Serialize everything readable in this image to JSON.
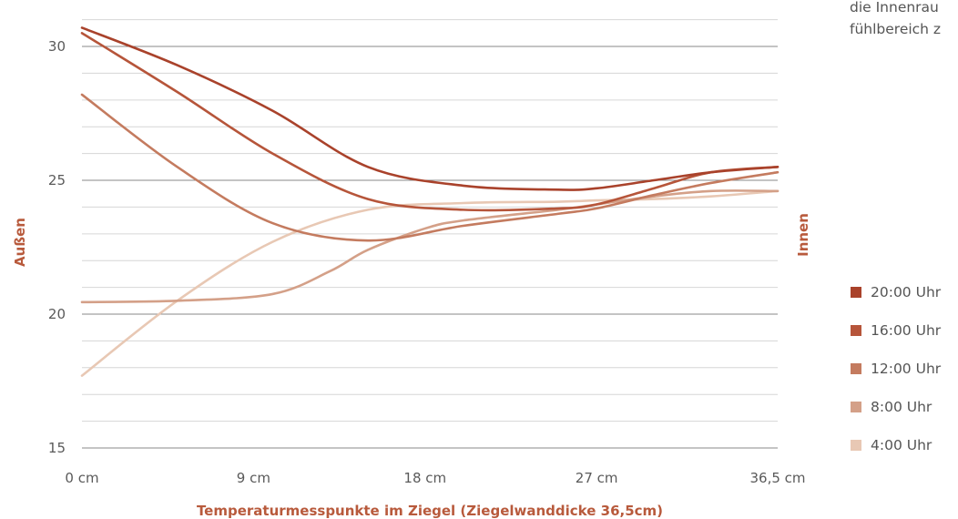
{
  "chart_data": {
    "type": "line",
    "xlabel": "Temperaturmesspunkte im Ziegel (Ziegelwanddicke 36,5cm)",
    "ylabel_left": "Außen",
    "ylabel_right": "Innen",
    "x_tick_labels": [
      "0 cm",
      "9 cm",
      "18 cm",
      "27 cm",
      "36,5 cm"
    ],
    "x_tick_values": [
      0,
      9,
      18,
      27,
      36.5
    ],
    "y_ticks": [
      15,
      20,
      25,
      30
    ],
    "ylim": [
      15,
      31.6
    ],
    "xlim": [
      0,
      36.5
    ],
    "grid": true,
    "legend_position": "right",
    "series": [
      {
        "name": "20:00 Uhr",
        "color": "#a9422b",
        "x": [
          0,
          5,
          10,
          15,
          20,
          25,
          27,
          30,
          33,
          36.5
        ],
        "y": [
          30.7,
          29.3,
          27.6,
          25.5,
          24.8,
          24.65,
          24.7,
          25.0,
          25.3,
          25.5
        ]
      },
      {
        "name": "16:00 Uhr",
        "color": "#b6553a",
        "x": [
          0,
          5,
          10,
          15,
          20,
          25,
          27,
          30,
          33,
          36.5
        ],
        "y": [
          30.5,
          28.3,
          26.0,
          24.3,
          23.9,
          23.95,
          24.1,
          24.7,
          25.3,
          25.5
        ]
      },
      {
        "name": "12:00 Uhr",
        "color": "#c47b5f",
        "x": [
          0,
          5,
          10,
          15,
          20,
          25,
          27,
          30,
          33,
          36.5
        ],
        "y": [
          28.2,
          25.5,
          23.4,
          22.75,
          23.3,
          23.75,
          23.95,
          24.45,
          24.9,
          25.3
        ]
      },
      {
        "name": "8:00 Uhr",
        "color": "#d4a088",
        "x": [
          0,
          5,
          10,
          13,
          15,
          18,
          20,
          25,
          27,
          30,
          33,
          36.5
        ],
        "y": [
          20.45,
          20.5,
          20.75,
          21.6,
          22.4,
          23.2,
          23.5,
          23.9,
          24.1,
          24.4,
          24.6,
          24.6
        ]
      },
      {
        "name": "4:00 Uhr",
        "color": "#e8c8b4",
        "x": [
          0,
          5,
          10,
          15,
          20,
          25,
          27,
          30,
          33,
          36.5
        ],
        "y": [
          17.7,
          20.5,
          22.7,
          23.9,
          24.15,
          24.2,
          24.25,
          24.3,
          24.4,
          24.6
        ]
      }
    ]
  },
  "legend": {
    "items": [
      {
        "label": "20:00 Uhr",
        "color": "#a9422b"
      },
      {
        "label": "16:00 Uhr",
        "color": "#b6553a"
      },
      {
        "label": "12:00 Uhr",
        "color": "#c47b5f"
      },
      {
        "label": "8:00 Uhr",
        "color": "#d4a088"
      },
      {
        "label": "4:00 Uhr",
        "color": "#e8c8b4"
      }
    ]
  },
  "note": {
    "line1": "die Innenrau",
    "line2": "fühlbereich z"
  }
}
